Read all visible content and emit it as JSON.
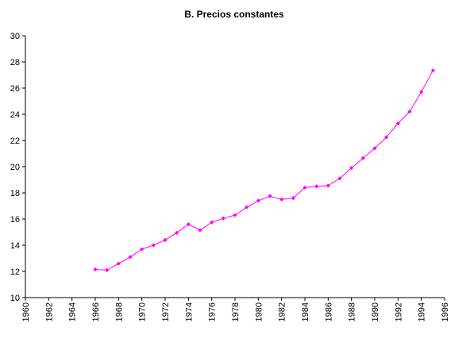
{
  "chart_data": {
    "type": "line",
    "title": "B. Precios constantes",
    "xlabel": "",
    "ylabel": "",
    "xlim": [
      1960,
      1996
    ],
    "ylim": [
      10,
      30
    ],
    "x_ticks": [
      "1960",
      "1962",
      "1964",
      "1966",
      "1968",
      "1970",
      "1972",
      "1974",
      "1976",
      "1978",
      "1980",
      "1982",
      "1984",
      "1986",
      "1988",
      "1990",
      "1992",
      "1994",
      "1996"
    ],
    "y_ticks": [
      "10",
      "12",
      "14",
      "16",
      "18",
      "20",
      "22",
      "24",
      "26",
      "28",
      "30"
    ],
    "grid": false,
    "legend": "none",
    "series": [
      {
        "color": "#ff00ff",
        "x": [
          1966,
          1967,
          1968,
          1969,
          1970,
          1971,
          1972,
          1973,
          1974,
          1975,
          1976,
          1977,
          1978,
          1979,
          1980,
          1981,
          1982,
          1983,
          1984,
          1985,
          1986,
          1987,
          1988,
          1989,
          1990,
          1991,
          1992,
          1993,
          1994,
          1995
        ],
        "values": [
          12.15,
          12.1,
          12.6,
          13.1,
          13.7,
          14.0,
          14.4,
          14.95,
          15.6,
          15.15,
          15.75,
          16.05,
          16.3,
          16.9,
          17.4,
          17.75,
          17.5,
          17.6,
          18.4,
          18.5,
          18.55,
          19.1,
          19.9,
          20.65,
          21.4,
          22.25,
          23.3,
          24.2,
          25.7,
          27.35
        ]
      }
    ]
  }
}
